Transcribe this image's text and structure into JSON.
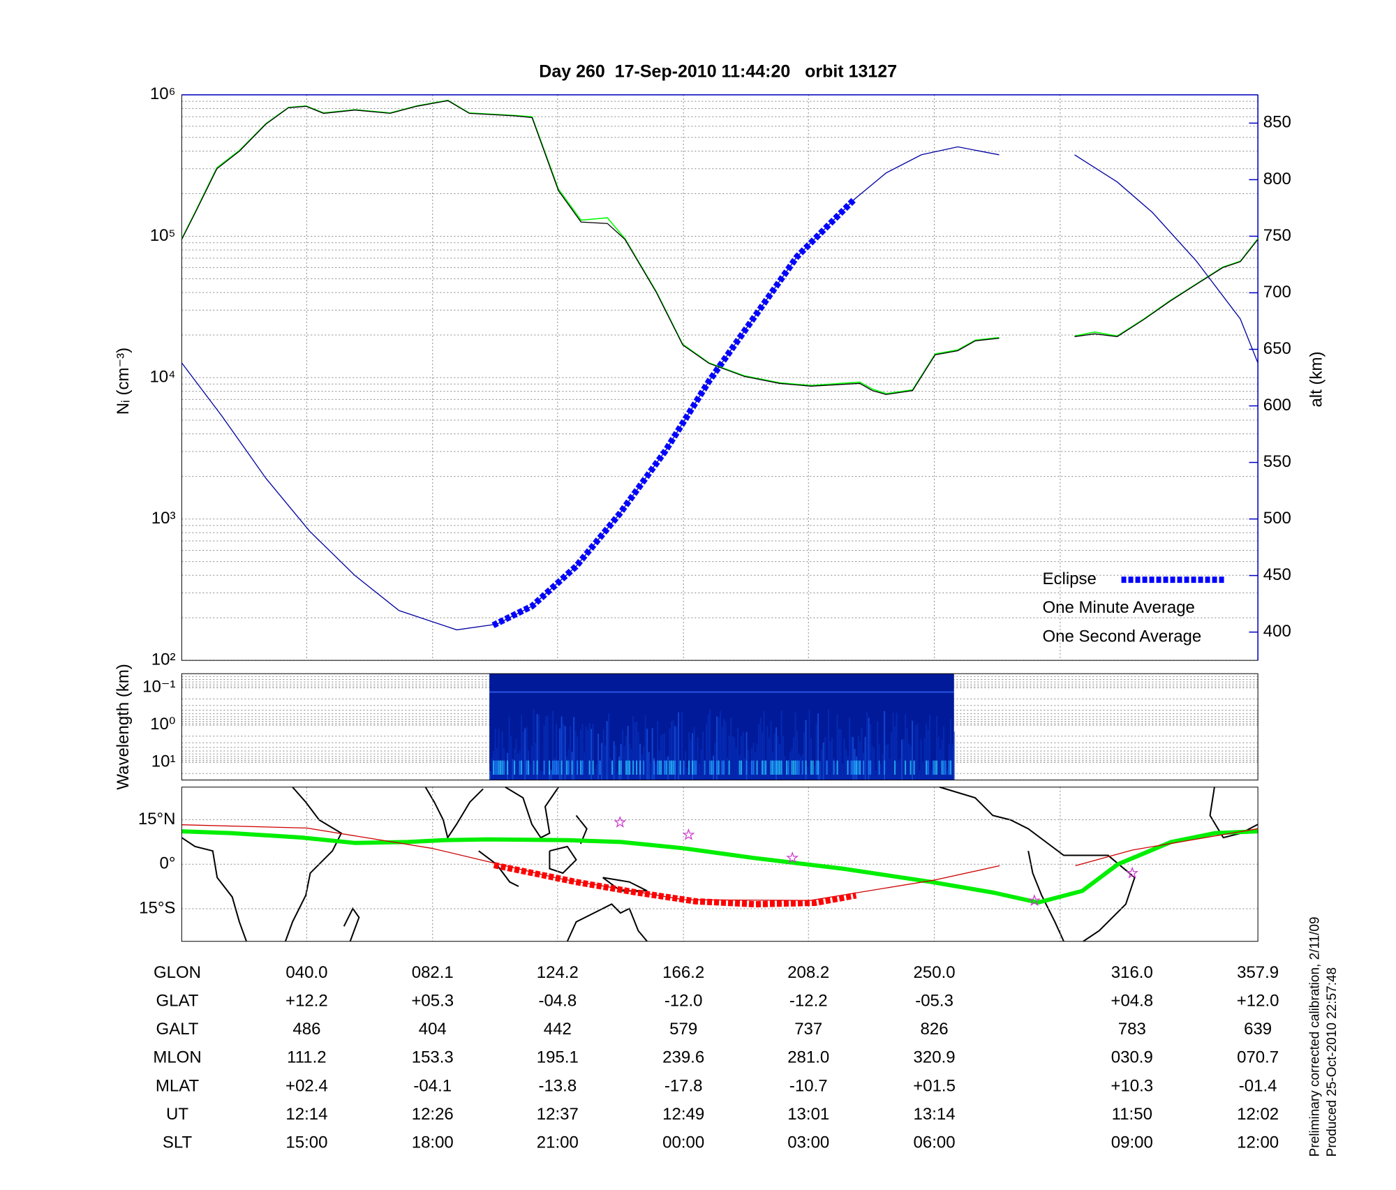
{
  "chart_data": [
    {
      "type": "line",
      "title": "Day 260  17-Sep-2010 11:44:20   orbit 13127",
      "ylabel": "Nᵢ (cm⁻³)",
      "y2label": "alt (km)",
      "yscale": "log",
      "xlim": [
        0,
        8.57
      ],
      "ylim": [
        100,
        1000000
      ],
      "yticks": [
        {
          "value": 100,
          "label": "10²"
        },
        {
          "value": 1000,
          "label": "10³"
        },
        {
          "value": 10000,
          "label": "10⁴"
        },
        {
          "value": 100000,
          "label": "10⁵"
        },
        {
          "value": 1000000,
          "label": "10⁶"
        }
      ],
      "y2lim": [
        375,
        875
      ],
      "y2ticks": [
        400,
        450,
        500,
        550,
        600,
        650,
        700,
        750,
        800,
        850
      ],
      "grid": true,
      "legend": "lower right",
      "series": [
        {
          "color": "#0000a0",
          "axis": "y2",
          "style": "thin",
          "x": [
            0,
            0.32,
            0.67,
            1.02,
            1.38,
            1.73,
            2.19,
            2.51,
            2.79,
            3.14,
            3.49,
            3.85,
            4.2,
            4.55,
            4.9,
            5.36,
            5.61,
            5.89,
            6.18,
            6.51,
            6.8,
            7.11,
            7.45,
            7.73,
            8.08,
            8.43,
            8.57
          ],
          "values": [
            638,
            591,
            536,
            489,
            450,
            419,
            402,
            407,
            423,
            458,
            505,
            560,
            622,
            677,
            732,
            783,
            806,
            822,
            829,
            822,
            null,
            822,
            798,
            771,
            728,
            677,
            638
          ]
        },
        {
          "name": "Eclipse",
          "color": "#0000ff",
          "axis": "y2",
          "style": "dashed",
          "x": [
            2.48,
            2.79,
            3.14,
            3.49,
            3.85,
            4.2,
            4.55,
            4.9,
            5.36
          ],
          "values": [
            406,
            423,
            458,
            505,
            560,
            622,
            677,
            732,
            783
          ]
        },
        {
          "name": "One Minute Average",
          "color": "#000000",
          "style": "thin",
          "x": [
            0,
            0.11,
            0.28,
            0.46,
            0.67,
            0.85,
            0.99,
            1.13,
            1.38,
            1.66,
            1.87,
            2.12,
            2.29,
            2.65,
            2.79,
            3.0,
            3.18,
            3.39,
            3.53,
            3.78,
            3.99,
            4.2,
            4.48,
            4.76,
            5.01,
            5.4,
            5.5,
            5.61,
            5.82,
            6.0,
            6.18,
            6.32,
            6.51,
            6.8,
            7.11,
            7.27,
            7.45,
            7.66,
            7.87,
            8.08,
            8.29,
            8.43,
            8.57
          ],
          "values": [
            95000,
            148000,
            300000,
            400000,
            620000,
            810000,
            830000,
            740000,
            780000,
            740000,
            830000,
            910000,
            740000,
            710000,
            690000,
            210000,
            126000,
            123000,
            95000,
            40000,
            17000,
            12600,
            10200,
            9100,
            8700,
            9100,
            8100,
            7600,
            8100,
            14500,
            15500,
            18200,
            19000,
            null,
            19500,
            20400,
            19500,
            25700,
            34700,
            45700,
            60000,
            66000,
            95000
          ]
        },
        {
          "name": "One Second Average",
          "color": "#00ff00",
          "style": "normal",
          "x": [
            0,
            0.11,
            0.28,
            0.46,
            0.67,
            0.85,
            0.99,
            1.13,
            1.38,
            1.66,
            1.87,
            2.12,
            2.29,
            2.65,
            2.79,
            3.0,
            3.18,
            3.39,
            3.53,
            3.78,
            3.99,
            4.2,
            4.48,
            4.76,
            5.01,
            5.4,
            5.5,
            5.61,
            5.82,
            6.0,
            6.18,
            6.32,
            6.51,
            6.8,
            7.11,
            7.27,
            7.45,
            7.66,
            7.87,
            8.08,
            8.29,
            8.43,
            8.57
          ],
          "values": [
            96000,
            150000,
            305000,
            405000,
            625000,
            815000,
            835000,
            745000,
            785000,
            745000,
            835000,
            915000,
            745000,
            715000,
            700000,
            215000,
            130000,
            135000,
            96000,
            40500,
            17200,
            12700,
            10300,
            9200,
            8800,
            9300,
            8300,
            7700,
            8200,
            14700,
            15700,
            18400,
            19200,
            null,
            19700,
            21000,
            19700,
            25900,
            35000,
            46000,
            60500,
            66500,
            96000
          ]
        }
      ]
    },
    {
      "type": "spectrogram",
      "ylabel": "Wavelength (km)",
      "yscale": "log",
      "y_reversed": true,
      "xlim": [
        0,
        8.57
      ],
      "ylim": [
        0.042,
        30
      ],
      "yticks": [
        {
          "value": 0.1,
          "label": "10⁻¹"
        },
        {
          "value": 1,
          "label": "10⁰"
        },
        {
          "value": 10,
          "label": "10¹"
        }
      ],
      "xrange": [
        2.45,
        6.15
      ],
      "color": "#001a99"
    },
    {
      "type": "map",
      "xlim": [
        -1.8,
        357.9
      ],
      "ylim": [
        -26,
        26
      ],
      "yticks": [
        {
          "value": 15,
          "label": "15°N"
        },
        {
          "value": 0,
          "label": "0°"
        },
        {
          "value": -15,
          "label": "15°S"
        }
      ],
      "series": [
        {
          "color": "#00ee00",
          "style": "thick",
          "x": [
            -1.8,
            14.5,
            38.2,
            56.0,
            73.8,
            85.7,
            100.5,
            127.2,
            145.0,
            165.8,
            189.5,
            219.2,
            248.8,
            269.6,
            284.4,
            299.2,
            311.1,
            328.9,
            343.7,
            357.9
          ],
          "values": [
            11.1,
            10.5,
            9.0,
            7.2,
            7.5,
            8.1,
            8.4,
            8.1,
            7.5,
            5.4,
            2.1,
            -1.5,
            -6.0,
            -9.6,
            -12.9,
            -9.0,
            0.0,
            7.5,
            10.5,
            11.1
          ]
        },
        {
          "color": "#cc0000",
          "style": "thin",
          "x": [
            -1.8,
            40.0,
            82.1,
            124.2,
            166.2,
            208.2,
            250.0,
            271.6,
            285,
            296.9,
            316.0,
            357.9
          ],
          "values": [
            13.3,
            12.2,
            5.3,
            -4.8,
            -12.0,
            -12.2,
            -5.3,
            -0.5,
            null,
            -0.5,
            4.8,
            12.0
          ]
        },
        {
          "color": "#ff0000",
          "style": "dashed",
          "x": [
            102.6,
            130,
            150,
            170,
            190,
            210,
            223.6
          ],
          "values": [
            -0.3,
            -6,
            -9.5,
            -12.5,
            -13.5,
            -13,
            -10.5
          ]
        },
        {
          "color": "#cc33cc",
          "style": "star",
          "x": [
            144.7,
            167.6,
            202.3,
            283.2,
            315.9
          ],
          "values": [
            14.1,
            9.9,
            2.1,
            -12.3,
            -3.0
          ]
        }
      ]
    }
  ],
  "table": {
    "row_labels": [
      "GLON",
      "GLAT",
      "GALT",
      "MLON",
      "MLAT",
      "UT",
      "SLT"
    ],
    "rows": [
      [
        "040.0",
        "082.1",
        "124.2",
        "166.2",
        "208.2",
        "250.0",
        "316.0",
        "357.9"
      ],
      [
        "+12.2",
        "+05.3",
        "-04.8",
        "-12.0",
        "-12.2",
        "-05.3",
        "+04.8",
        "+12.0"
      ],
      [
        "486",
        "404",
        "442",
        "579",
        "737",
        "826",
        "783",
        "639"
      ],
      [
        "111.2",
        "153.3",
        "195.1",
        "239.6",
        "281.0",
        "320.9",
        "030.9",
        "070.7"
      ],
      [
        "+02.4",
        "-04.1",
        "-13.8",
        "-17.8",
        "-10.7",
        "+01.5",
        "+10.3",
        "-01.4"
      ],
      [
        "12:14",
        "12:26",
        "12:37",
        "12:49",
        "13:01",
        "13:14",
        "11:50",
        "12:02"
      ],
      [
        "15:00",
        "18:00",
        "21:00",
        "00:00",
        "03:00",
        "06:00",
        "09:00",
        "12:00"
      ]
    ]
  },
  "notes": [
    "Preliminary corrected calibration, 2/11/09",
    "Produced 25-Oct-2010 22:57:48"
  ]
}
